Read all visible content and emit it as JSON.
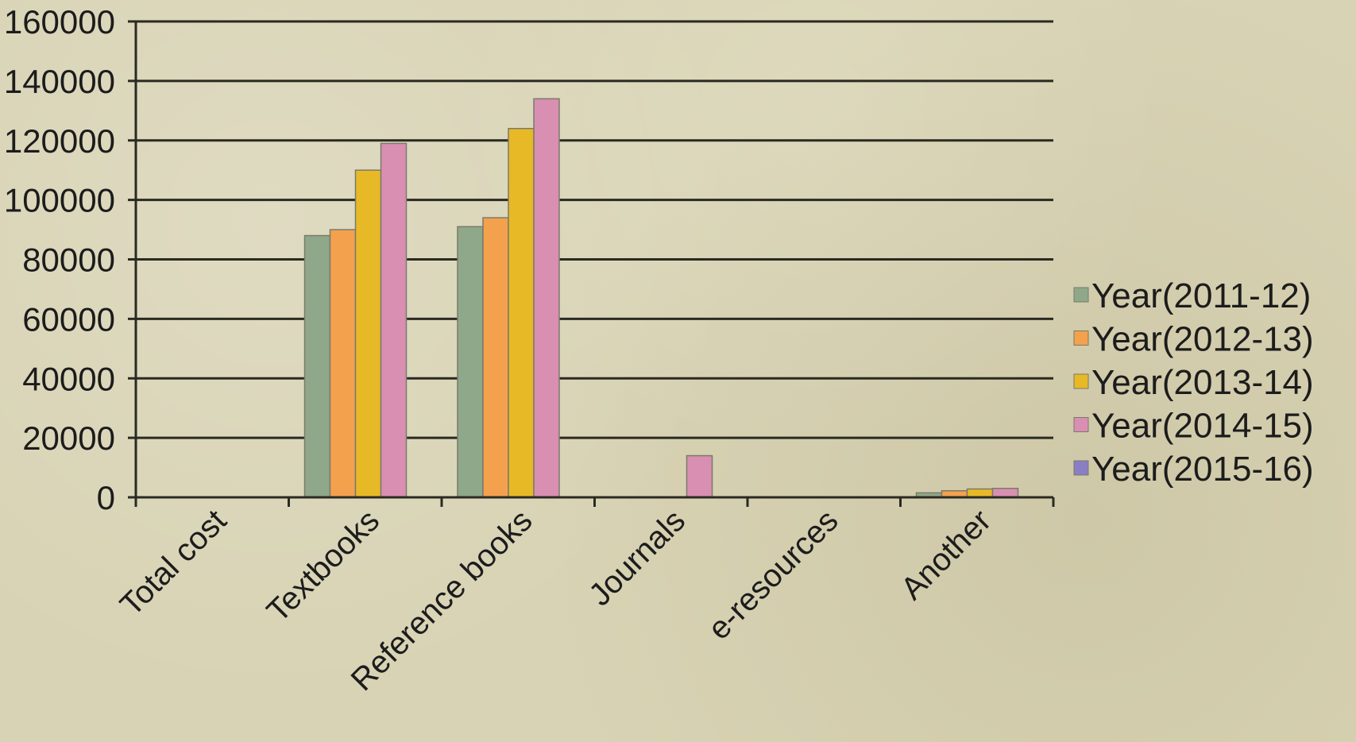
{
  "chart_data": {
    "type": "bar",
    "title": "",
    "xlabel": "",
    "ylabel": "",
    "ylim": [
      0,
      160000
    ],
    "yticks": [
      0,
      20000,
      40000,
      60000,
      80000,
      100000,
      120000,
      140000,
      160000
    ],
    "ytick_labels": [
      "0",
      "20000",
      "40000",
      "60000",
      "80000",
      "100000",
      "120000",
      "140000",
      "160000"
    ],
    "grid": true,
    "legend_position": "right",
    "categories": [
      "Total cost",
      "Textbooks",
      "Reference books",
      "Journals",
      "e-resources",
      "Another"
    ],
    "series": [
      {
        "name": "Year(2011-12)",
        "color": "#8fa88a",
        "values": [
          0,
          88000,
          91000,
          0,
          0,
          1500
        ]
      },
      {
        "name": "Year(2012-13)",
        "color": "#f4a14e",
        "values": [
          0,
          90000,
          94000,
          0,
          0,
          2200
        ]
      },
      {
        "name": "Year(2013-14)",
        "color": "#e8b926",
        "values": [
          0,
          110000,
          124000,
          0,
          0,
          2800
        ]
      },
      {
        "name": "Year(2014-15)",
        "color": "#d98fb1",
        "values": [
          0,
          119000,
          134000,
          14000,
          0,
          3000
        ]
      },
      {
        "name": "Year(2015-16)",
        "color": "#8a7fc4",
        "values": [
          0,
          0,
          0,
          0,
          0,
          0
        ]
      }
    ]
  }
}
